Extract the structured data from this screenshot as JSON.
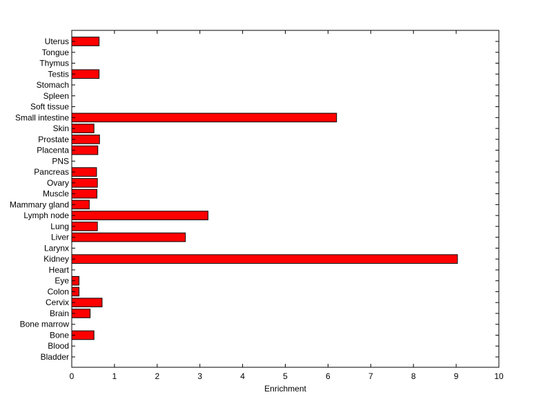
{
  "chart_data": {
    "type": "bar",
    "orientation": "horizontal",
    "title": "",
    "xlabel": "Enrichment",
    "ylabel": "",
    "xlim": [
      0,
      10
    ],
    "xticks": [
      0,
      1,
      2,
      3,
      4,
      5,
      6,
      7,
      8,
      9,
      10
    ],
    "grid": false,
    "legend": "none",
    "bar_color": "#ff0000",
    "bar_edge_color": "#000000",
    "categories": [
      "Bladder",
      "Blood",
      "Bone",
      "Bone marrow",
      "Brain",
      "Cervix",
      "Colon",
      "Eye",
      "Heart",
      "Kidney",
      "Larynx",
      "Liver",
      "Lung",
      "Lymph node",
      "Mammary gland",
      "Muscle",
      "Ovary",
      "Pancreas",
      "PNS",
      "Placenta",
      "Prostate",
      "Skin",
      "Small intestine",
      "Soft tissue",
      "Spleen",
      "Stomach",
      "Testis",
      "Thymus",
      "Tongue",
      "Uterus"
    ],
    "values": [
      0,
      0,
      0.52,
      0,
      0.43,
      0.71,
      0.17,
      0.17,
      0,
      9.03,
      0,
      2.66,
      0.6,
      3.19,
      0.41,
      0.59,
      0.6,
      0.58,
      0,
      0.61,
      0.65,
      0.52,
      6.2,
      0,
      0,
      0,
      0.64,
      0,
      0,
      0.64
    ]
  }
}
